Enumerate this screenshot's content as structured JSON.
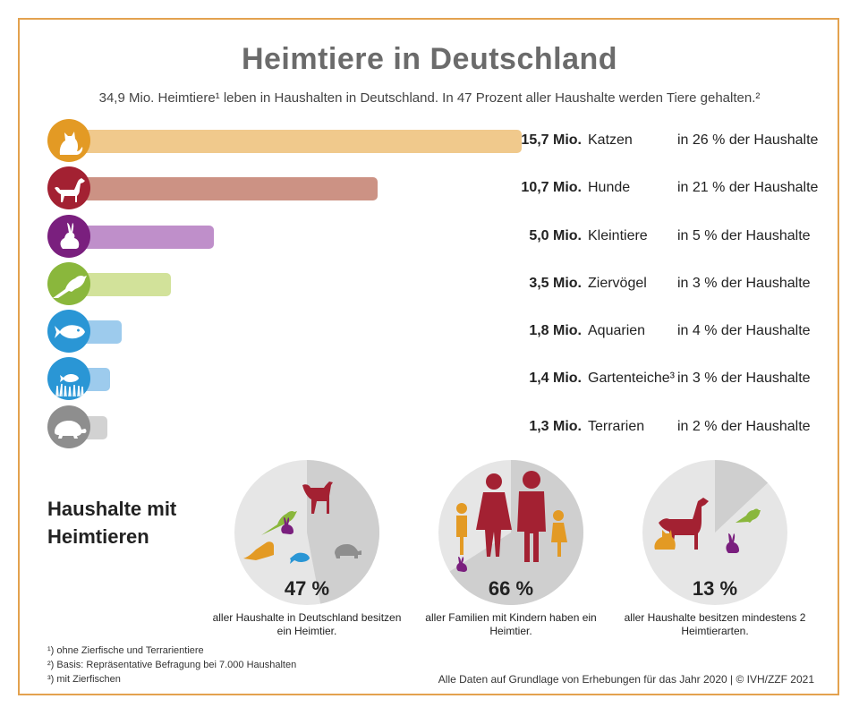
{
  "title": "Heimtiere in Deutschland",
  "subtitle": "34,9 Mio. Heimtiere¹ leben in Haushalten in Deutschland. In 47 Prozent aller Haushalte werden Tiere gehalten.²",
  "chart_data": [
    {
      "type": "bar",
      "orientation": "horizontal",
      "unit": "Mio.",
      "categories": [
        "Katzen",
        "Hunde",
        "Kleintiere",
        "Ziervögel",
        "Aquarien",
        "Gartenteiche³",
        "Terrarien"
      ],
      "values": [
        15.7,
        10.7,
        5.0,
        3.5,
        1.8,
        1.4,
        1.3
      ],
      "value_labels": [
        "15,7 Mio.",
        "10,7  Mio.",
        "5,0 Mio.",
        "3,5 Mio.",
        "1,8 Mio.",
        "1,4 Mio.",
        "1,3 Mio."
      ],
      "household_share_labels": [
        "in 26 % der Haushalte",
        "in  21 % der Haushalte",
        "in   5 % der Haushalte",
        "in   3 % der Haushalte",
        "in   4 % der Haushalte",
        "in   3 % der Haushalte",
        "in   2 % der Haushalte"
      ],
      "household_share_percent": [
        26,
        21,
        5,
        3,
        4,
        3,
        2
      ],
      "colors": [
        "#f0c98c",
        "#cc9284",
        "#bf8fca",
        "#d2e29a",
        "#9dcbed",
        "#9dcbed",
        "#d2d2d2"
      ],
      "icon_colors": [
        "#e39a24",
        "#a32132",
        "#7a1f7e",
        "#8ab73c",
        "#2a96d5",
        "#2a96d5",
        "#8e8e8e"
      ],
      "icons": [
        "cat-icon",
        "dog-icon",
        "rabbit-icon",
        "bird-icon",
        "fish-icon",
        "pond-icon",
        "turtle-icon"
      ],
      "grid": false,
      "legend": "none"
    },
    {
      "type": "pie",
      "title": "Haushalte mit Heimtieren",
      "pies": [
        {
          "value": 47,
          "label": "47 %",
          "description": "aller Haushalte in Deutschland besitzen ein Heimtier."
        },
        {
          "value": 66,
          "label": "66 %",
          "description": "aller Familien mit Kindern haben ein Heimtier."
        },
        {
          "value": 13,
          "label": "13 %",
          "description": "aller Haushalte besitzen mindestens 2 Heimtierarten."
        }
      ],
      "colors": {
        "share": "#cfcfcf",
        "rest": "#e6e6e6"
      }
    }
  ],
  "footnotes": [
    "¹) ohne Zierfische und Terrarientiere",
    "²) Basis: Repräsentative Befragung bei 7.000 Haushalten",
    "³) mit Zierfischen"
  ],
  "credit": "Alle Daten auf Grundlage von Erhebungen für das Jahr 2020 | © IVH/ZZF 2021",
  "colors": {
    "frame": "#e3a24f",
    "title": "#6b6b6b"
  }
}
